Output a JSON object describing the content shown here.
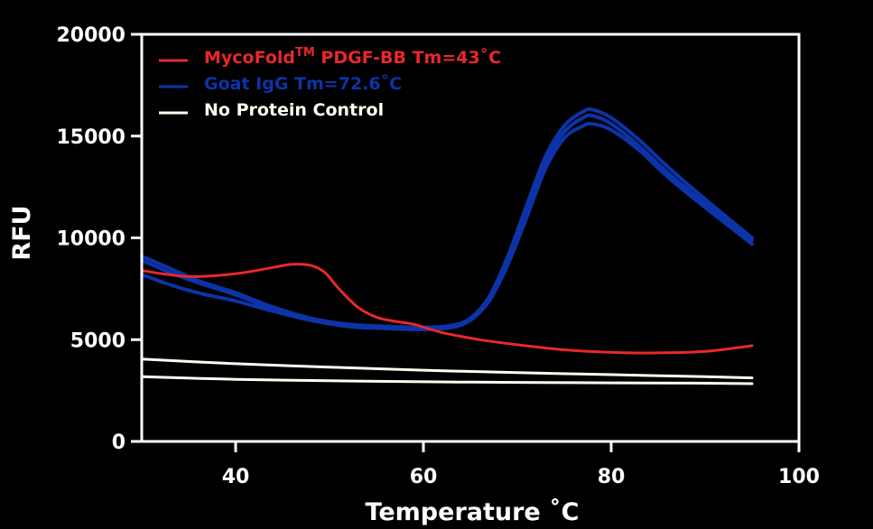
{
  "chart_data": {
    "type": "line",
    "title": "",
    "xlabel": "Temperature ˚C",
    "ylabel": "RFU",
    "xlim": [
      30,
      100
    ],
    "ylim": [
      0,
      20000
    ],
    "x_ticks": [
      "40",
      "60",
      "80",
      "100"
    ],
    "y_ticks": [
      "0",
      "5000",
      "10000",
      "15000",
      "20000"
    ],
    "grid": false,
    "legend_position": "top-left",
    "colors": {
      "red": "#e8282a",
      "blue": "#0d33a8",
      "white": "#fffef0",
      "axis": "#ffffff",
      "background": "#000000"
    },
    "legend": [
      {
        "label_main": "MycoFold",
        "label_sup": "TM",
        "label_rest": " PDGF-BB Tm=43˚C",
        "color": "#e8282a"
      },
      {
        "label_main": "Goat IgG Tm=72.6˚C",
        "label_sup": "",
        "label_rest": "",
        "color": "#0d33a8"
      },
      {
        "label_main": "No Protein Control",
        "label_sup": "",
        "label_rest": "",
        "color": "#fffef0"
      }
    ],
    "series": [
      {
        "name": "MycoFold™ PDGF-BB Tm=43˚C",
        "color": "#e8282a",
        "x": [
          30,
          32,
          35,
          38,
          41,
          44,
          46,
          48,
          49.5,
          51,
          53,
          55,
          57,
          59,
          62,
          66,
          70,
          75,
          80,
          85,
          90,
          95
        ],
        "y": [
          8400,
          8250,
          8100,
          8150,
          8300,
          8550,
          8700,
          8650,
          8300,
          7500,
          6600,
          6100,
          5900,
          5750,
          5350,
          5000,
          4750,
          4500,
          4380,
          4350,
          4420,
          4700
        ]
      },
      {
        "name": "Goat IgG Tm=72.6˚C",
        "color": "#0d33a8",
        "x": [
          30,
          33,
          36,
          40,
          44,
          48,
          52,
          56,
          60,
          63,
          65,
          67,
          69,
          71,
          73,
          75,
          77,
          78,
          80,
          83,
          86,
          90,
          95
        ],
        "y": [
          8900,
          8300,
          7800,
          7200,
          6500,
          6000,
          5700,
          5600,
          5550,
          5650,
          6000,
          7000,
          8900,
          11300,
          13700,
          15200,
          15900,
          16000,
          15600,
          14500,
          13200,
          11700,
          9900
        ]
      },
      {
        "name": "Goat IgG Tm=72.6˚C",
        "color": "#0d33a8",
        "x": [
          30,
          33,
          36,
          40,
          44,
          48,
          52,
          56,
          60,
          63,
          65,
          67,
          69,
          71,
          73,
          75,
          77,
          78,
          80,
          83,
          86,
          90,
          95
        ],
        "y": [
          9100,
          8500,
          7900,
          7300,
          6600,
          6050,
          5750,
          5650,
          5600,
          5700,
          6050,
          7100,
          9100,
          11600,
          14000,
          15500,
          16200,
          16300,
          15900,
          14800,
          13500,
          11900,
          10000
        ]
      },
      {
        "name": "Goat IgG Tm=72.6˚C",
        "color": "#0d33a8",
        "x": [
          30,
          33,
          36,
          40,
          44,
          48,
          52,
          56,
          60,
          63,
          65,
          67,
          69,
          71,
          73,
          75,
          77,
          78,
          80,
          83,
          86,
          90,
          95
        ],
        "y": [
          8200,
          7700,
          7300,
          6900,
          6400,
          5950,
          5650,
          5550,
          5500,
          5600,
          5950,
          6900,
          8700,
          11000,
          13400,
          14900,
          15500,
          15600,
          15300,
          14300,
          13000,
          11500,
          9700
        ]
      },
      {
        "name": "No Protein Control",
        "color": "#fffef0",
        "x": [
          30,
          40,
          50,
          60,
          70,
          80,
          90,
          95
        ],
        "y": [
          4050,
          3820,
          3650,
          3500,
          3380,
          3280,
          3180,
          3120
        ]
      },
      {
        "name": "No Protein Control",
        "color": "#fffef0",
        "x": [
          30,
          40,
          50,
          60,
          70,
          80,
          90,
          95
        ],
        "y": [
          3180,
          3050,
          2980,
          2930,
          2900,
          2880,
          2860,
          2840
        ]
      }
    ]
  }
}
